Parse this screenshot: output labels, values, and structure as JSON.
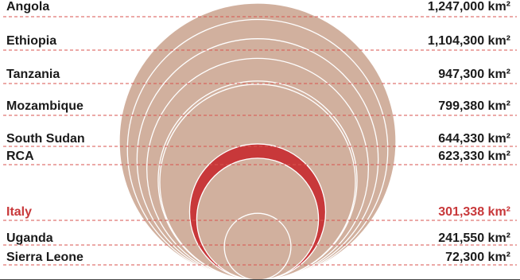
{
  "colors": {
    "circle_fill": "#d1b09e",
    "circle_stroke": "#ffffff",
    "highlight": "#c8383a",
    "text": "#1a1a1a",
    "dashed_line": "#d9534f",
    "base_line": "#444444"
  },
  "chart_data": {
    "type": "nested-circles",
    "title": "",
    "unit": "km²",
    "highlight": "Italy",
    "rows": [
      {
        "name": "Angola",
        "value": 1247000,
        "label": "1,247,000 km²"
      },
      {
        "name": "Ethiopia",
        "value": 1104300,
        "label": "1,104,300 km²"
      },
      {
        "name": "Tanzania",
        "value": 947300,
        "label": "947,300 km²"
      },
      {
        "name": "Mozambique",
        "value": 799380,
        "label": "799,380 km²"
      },
      {
        "name": "South Sudan",
        "value": 644330,
        "label": "644,330 km²"
      },
      {
        "name": "RCA",
        "value": 623330,
        "label": "623,330 km²"
      },
      {
        "name": "Italy",
        "value": 301338,
        "label": "301,338 km²"
      },
      {
        "name": "Uganda",
        "value": 241550,
        "label": "241,550 km²"
      },
      {
        "name": "Sierra Leone",
        "value": 72300,
        "label": "72,300 km²"
      }
    ]
  }
}
